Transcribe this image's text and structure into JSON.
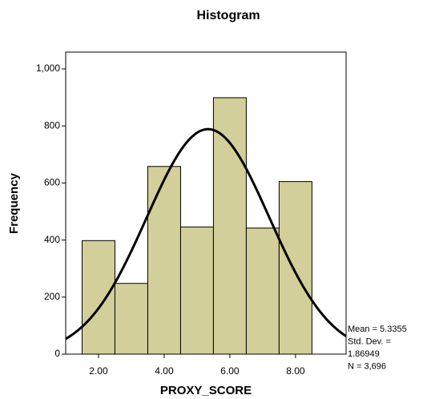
{
  "chart_data": {
    "type": "histogram",
    "title": "Histogram",
    "x_label": "PROXY_SCORE",
    "y_label": "Frequency",
    "bins": [
      1.5,
      2.5,
      3.5,
      4.5,
      5.5,
      6.5,
      7.5,
      8.5
    ],
    "values": [
      398,
      248,
      658,
      446,
      899,
      442,
      605
    ],
    "color": "#d3cf9a",
    "xlim": [
      1.0,
      9.54
    ],
    "ylim": [
      0,
      1059
    ],
    "xticks": [
      {
        "value": 2,
        "label": "2.00"
      },
      {
        "value": 4,
        "label": "4.00"
      },
      {
        "value": 6,
        "label": "6.00"
      },
      {
        "value": 8,
        "label": "8.00"
      }
    ],
    "yticks": [
      0,
      200,
      400,
      600,
      800,
      {
        "value": 1000,
        "label": "1,000"
      }
    ],
    "normal_curve": {
      "mean": 5.3355,
      "sd": 1.86949,
      "n": 3696
    },
    "stats_labels": [
      "Mean = 5.3355",
      "Std. Dev. =",
      "1.86949",
      "N = 3,696"
    ]
  }
}
